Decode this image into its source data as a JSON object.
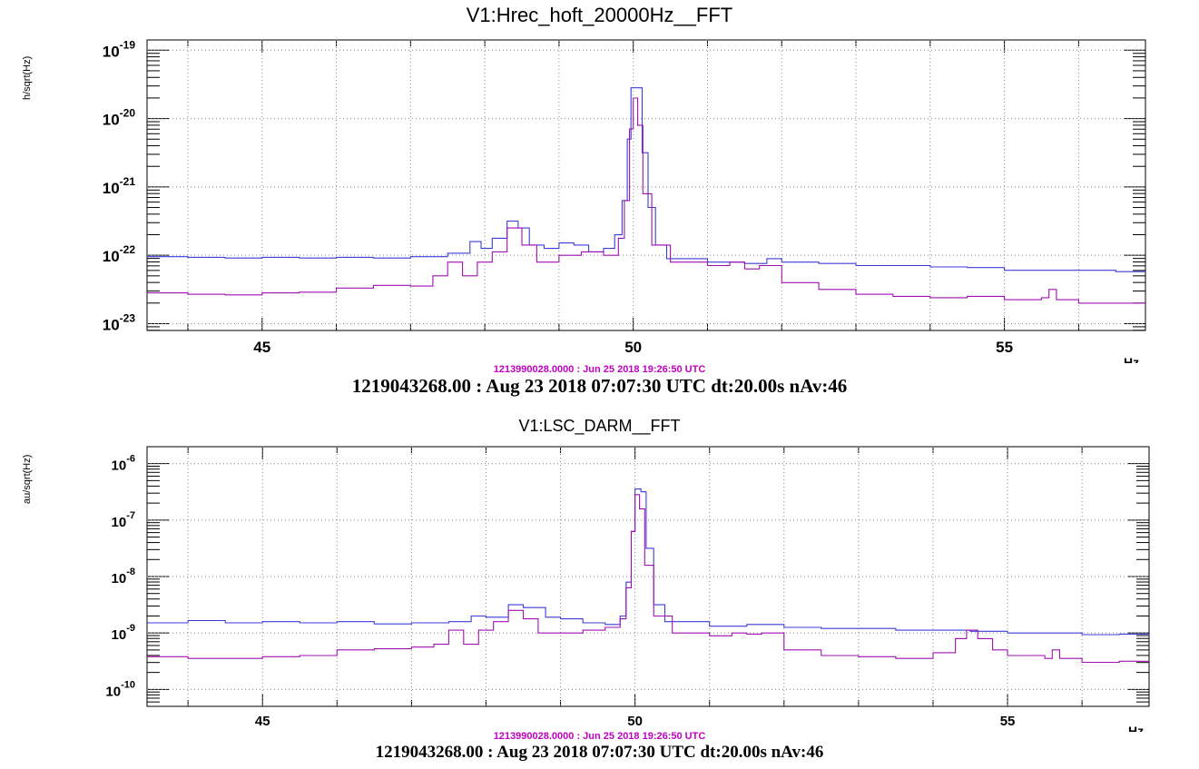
{
  "chart_data": [
    {
      "type": "line",
      "title": "V1:Hrec_hoft_20000Hz__FFT",
      "ylabel": "h/sqrt(Hz)",
      "xunit": "Hz",
      "xlim": [
        43.45,
        56.9
      ],
      "ylim_log10": [
        -23.1,
        -18.85
      ],
      "yscale": "log",
      "grid": true,
      "x_ticks": [
        "45",
        "50",
        "55"
      ],
      "y_ticks": [
        {
          "base": "10",
          "exp": "-19",
          "log": -19
        },
        {
          "base": "10",
          "exp": "-20",
          "log": -20
        },
        {
          "base": "10",
          "exp": "-21",
          "log": -21
        },
        {
          "base": "10",
          "exp": "-22",
          "log": -22
        },
        {
          "base": "10",
          "exp": "-23",
          "log": -23
        }
      ],
      "ref_time": "1213990028.0000 : Jun 25 2018 19:26:50 UTC",
      "current_time": "1219043268.00 : Aug 23 2018 07:07:30 UTC dt:20.00s nAv:46",
      "series": [
        {
          "color": "#3c3cd8",
          "points": [
            [
              43.45,
              -22.02
            ],
            [
              44.0,
              -22.03
            ],
            [
              44.5,
              -22.04
            ],
            [
              45.0,
              -22.03
            ],
            [
              45.5,
              -22.04
            ],
            [
              46.0,
              -22.03
            ],
            [
              46.5,
              -22.04
            ],
            [
              47.0,
              -22.02
            ],
            [
              47.5,
              -21.97
            ],
            [
              47.8,
              -21.8
            ],
            [
              47.95,
              -21.9
            ],
            [
              48.1,
              -21.75
            ],
            [
              48.3,
              -21.5
            ],
            [
              48.45,
              -21.6
            ],
            [
              48.6,
              -21.85
            ],
            [
              48.8,
              -21.9
            ],
            [
              49.0,
              -21.82
            ],
            [
              49.2,
              -21.85
            ],
            [
              49.4,
              -21.95
            ],
            [
              49.6,
              -21.9
            ],
            [
              49.75,
              -21.7
            ],
            [
              49.85,
              -21.2
            ],
            [
              49.92,
              -20.3
            ],
            [
              49.97,
              -19.55
            ],
            [
              50.05,
              -19.55
            ],
            [
              50.12,
              -20.5
            ],
            [
              50.2,
              -21.3
            ],
            [
              50.3,
              -21.85
            ],
            [
              50.45,
              -22.05
            ],
            [
              50.8,
              -22.05
            ],
            [
              51.0,
              -22.1
            ],
            [
              51.5,
              -22.12
            ],
            [
              51.8,
              -22.05
            ],
            [
              52.0,
              -22.1
            ],
            [
              52.5,
              -22.12
            ],
            [
              53.0,
              -22.15
            ],
            [
              53.5,
              -22.15
            ],
            [
              54.0,
              -22.17
            ],
            [
              54.5,
              -22.18
            ],
            [
              55.0,
              -22.22
            ],
            [
              55.5,
              -22.22
            ],
            [
              56.0,
              -22.22
            ],
            [
              56.5,
              -22.24
            ],
            [
              56.9,
              -22.24
            ]
          ]
        },
        {
          "color": "#a010b0",
          "points": [
            [
              43.45,
              -22.55
            ],
            [
              44.0,
              -22.57
            ],
            [
              44.5,
              -22.58
            ],
            [
              45.0,
              -22.55
            ],
            [
              45.5,
              -22.54
            ],
            [
              46.0,
              -22.48
            ],
            [
              46.5,
              -22.44
            ],
            [
              47.0,
              -22.45
            ],
            [
              47.3,
              -22.3
            ],
            [
              47.5,
              -22.1
            ],
            [
              47.7,
              -22.3
            ],
            [
              47.9,
              -22.1
            ],
            [
              48.1,
              -21.95
            ],
            [
              48.3,
              -21.6
            ],
            [
              48.5,
              -21.85
            ],
            [
              48.7,
              -22.1
            ],
            [
              49.0,
              -22.0
            ],
            [
              49.3,
              -21.95
            ],
            [
              49.6,
              -22.0
            ],
            [
              49.8,
              -21.75
            ],
            [
              49.88,
              -21.2
            ],
            [
              49.95,
              -20.15
            ],
            [
              50.0,
              -19.7
            ],
            [
              50.06,
              -20.1
            ],
            [
              50.13,
              -21.1
            ],
            [
              50.25,
              -21.85
            ],
            [
              50.5,
              -22.1
            ],
            [
              51.0,
              -22.15
            ],
            [
              51.3,
              -22.1
            ],
            [
              51.5,
              -22.2
            ],
            [
              51.7,
              -22.15
            ],
            [
              52.0,
              -22.4
            ],
            [
              52.5,
              -22.5
            ],
            [
              53.0,
              -22.57
            ],
            [
              53.5,
              -22.6
            ],
            [
              54.0,
              -22.62
            ],
            [
              54.5,
              -22.6
            ],
            [
              55.0,
              -22.65
            ],
            [
              55.5,
              -22.62
            ],
            [
              55.6,
              -22.5
            ],
            [
              55.7,
              -22.65
            ],
            [
              56.0,
              -22.7
            ],
            [
              56.5,
              -22.7
            ],
            [
              56.9,
              -22.72
            ]
          ]
        }
      ]
    },
    {
      "type": "line",
      "title": "V1:LSC_DARM__FFT",
      "ylabel": "au/sqrt(Hz)",
      "xunit": "Hz",
      "xlim": [
        43.45,
        56.9
      ],
      "ylim_log10": [
        -10.3,
        -5.7
      ],
      "yscale": "log",
      "grid": true,
      "x_ticks": [
        "45",
        "50",
        "55"
      ],
      "y_ticks": [
        {
          "base": "10",
          "exp": "-6",
          "log": -6
        },
        {
          "base": "10",
          "exp": "-7",
          "log": -7
        },
        {
          "base": "10",
          "exp": "-8",
          "log": -8
        },
        {
          "base": "10",
          "exp": "-9",
          "log": -9
        },
        {
          "base": "10",
          "exp": "-10",
          "log": -10
        }
      ],
      "ref_time": "1213990028.0000 : Jun 25 2018 19:26:50 UTC",
      "current_time": "1219043268.00 : Aug 23 2018 07:07:30 UTC dt:20.00s nAv:46",
      "series": [
        {
          "color": "#3c3cd8",
          "points": [
            [
              43.45,
              -8.82
            ],
            [
              44.0,
              -8.78
            ],
            [
              44.5,
              -8.82
            ],
            [
              45.0,
              -8.8
            ],
            [
              45.5,
              -8.82
            ],
            [
              46.0,
              -8.8
            ],
            [
              46.5,
              -8.84
            ],
            [
              47.0,
              -8.82
            ],
            [
              47.5,
              -8.8
            ],
            [
              47.8,
              -8.7
            ],
            [
              48.0,
              -8.72
            ],
            [
              48.3,
              -8.5
            ],
            [
              48.5,
              -8.55
            ],
            [
              48.8,
              -8.72
            ],
            [
              49.0,
              -8.75
            ],
            [
              49.3,
              -8.82
            ],
            [
              49.6,
              -8.85
            ],
            [
              49.8,
              -8.7
            ],
            [
              49.88,
              -8.1
            ],
            [
              49.95,
              -7.2
            ],
            [
              50.0,
              -6.45
            ],
            [
              50.08,
              -6.5
            ],
            [
              50.15,
              -7.5
            ],
            [
              50.25,
              -8.5
            ],
            [
              50.4,
              -8.8
            ],
            [
              51.0,
              -8.88
            ],
            [
              51.5,
              -8.85
            ],
            [
              52.0,
              -8.9
            ],
            [
              52.5,
              -8.92
            ],
            [
              53.0,
              -8.92
            ],
            [
              53.5,
              -8.95
            ],
            [
              54.0,
              -8.95
            ],
            [
              54.5,
              -8.97
            ],
            [
              55.0,
              -9.0
            ],
            [
              55.5,
              -9.0
            ],
            [
              56.0,
              -9.03
            ],
            [
              56.5,
              -9.02
            ],
            [
              56.9,
              -9.05
            ]
          ]
        },
        {
          "color": "#a010b0",
          "points": [
            [
              43.45,
              -9.42
            ],
            [
              44.0,
              -9.45
            ],
            [
              44.5,
              -9.45
            ],
            [
              45.0,
              -9.42
            ],
            [
              45.5,
              -9.4
            ],
            [
              46.0,
              -9.3
            ],
            [
              46.5,
              -9.28
            ],
            [
              47.0,
              -9.25
            ],
            [
              47.3,
              -9.2
            ],
            [
              47.5,
              -8.95
            ],
            [
              47.7,
              -9.2
            ],
            [
              47.9,
              -8.95
            ],
            [
              48.1,
              -8.8
            ],
            [
              48.3,
              -8.6
            ],
            [
              48.5,
              -8.75
            ],
            [
              48.7,
              -9.0
            ],
            [
              49.0,
              -9.0
            ],
            [
              49.3,
              -8.95
            ],
            [
              49.6,
              -8.9
            ],
            [
              49.8,
              -8.75
            ],
            [
              49.88,
              -8.2
            ],
            [
              49.95,
              -7.2
            ],
            [
              50.0,
              -6.55
            ],
            [
              50.06,
              -6.8
            ],
            [
              50.13,
              -7.8
            ],
            [
              50.25,
              -8.7
            ],
            [
              50.5,
              -9.0
            ],
            [
              51.0,
              -9.05
            ],
            [
              51.3,
              -9.0
            ],
            [
              51.5,
              -9.02
            ],
            [
              51.7,
              -9.0
            ],
            [
              52.0,
              -9.3
            ],
            [
              52.5,
              -9.4
            ],
            [
              53.0,
              -9.42
            ],
            [
              53.5,
              -9.45
            ],
            [
              54.0,
              -9.35
            ],
            [
              54.3,
              -9.1
            ],
            [
              54.45,
              -8.95
            ],
            [
              54.6,
              -9.1
            ],
            [
              54.8,
              -9.3
            ],
            [
              55.0,
              -9.4
            ],
            [
              55.5,
              -9.45
            ],
            [
              55.6,
              -9.3
            ],
            [
              55.7,
              -9.45
            ],
            [
              56.0,
              -9.52
            ],
            [
              56.5,
              -9.5
            ],
            [
              56.9,
              -9.52
            ]
          ]
        }
      ]
    }
  ]
}
